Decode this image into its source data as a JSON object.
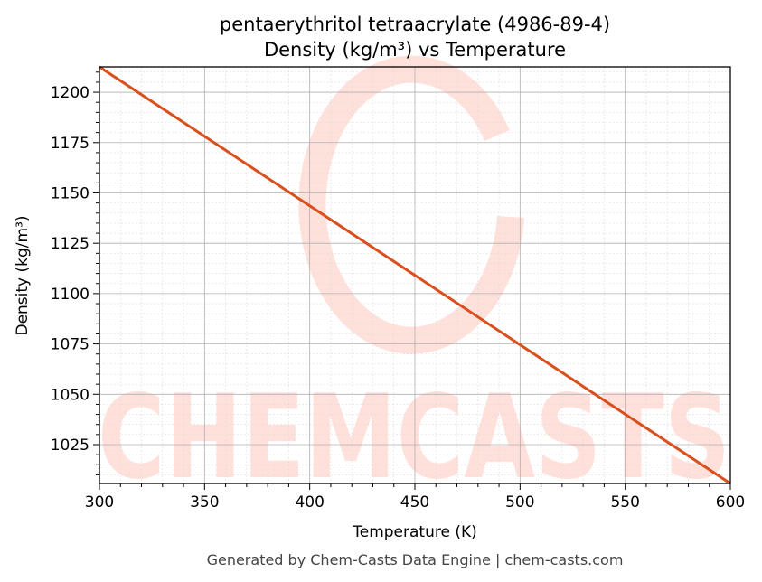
{
  "chart_data": {
    "type": "line",
    "title": "pentaerythritol tetraacrylate (4986-89-4)",
    "subtitle": "Density (kg/m³) vs Temperature",
    "xlabel": "Temperature (K)",
    "ylabel": "Density (kg/m³)",
    "xlim": [
      300,
      600
    ],
    "ylim": [
      1005.7,
      1212.6
    ],
    "xticks": [
      300,
      350,
      400,
      450,
      500,
      550,
      600
    ],
    "yticks": [
      1025,
      1050,
      1075,
      1100,
      1125,
      1150,
      1175,
      1200
    ],
    "grid": true,
    "series": [
      {
        "name": "Density",
        "color": "#d94f1e",
        "x": [
          300,
          350,
          400,
          450,
          500,
          550,
          600
        ],
        "y": [
          1212.6,
          1178.1,
          1143.6,
          1109.1,
          1074.6,
          1040.1,
          1005.7
        ]
      }
    ],
    "watermark": "CHEMCASTS",
    "footer": "Generated by Chem-Casts Data Engine | chem-casts.com"
  }
}
